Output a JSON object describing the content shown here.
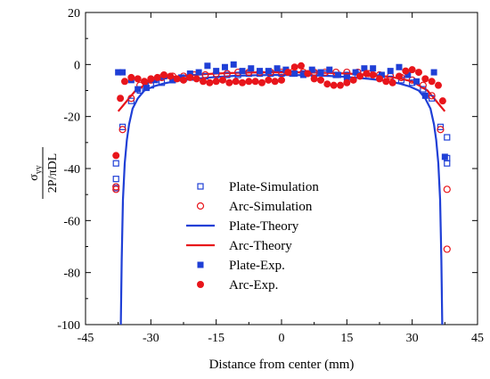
{
  "chart_data": {
    "type": "scatter",
    "title": "",
    "xlabel": "Distance from center (mm)",
    "ylabel": {
      "numerator": "σ",
      "numerator_sub": "yy",
      "denominator": "2P/πDL"
    },
    "xlim": [
      -45,
      45
    ],
    "ylim": [
      -100,
      20
    ],
    "xticks": [
      -45,
      -30,
      -15,
      0,
      15,
      30,
      45
    ],
    "yticks": [
      20,
      0,
      -20,
      -40,
      -60,
      -80,
      -100
    ],
    "grid": false,
    "legend_position": "center-left",
    "colors": {
      "plate": "#1f3fd6",
      "arc": "#e8151b"
    },
    "legend": [
      {
        "name": "Plate-Simulation",
        "marker": "square-open",
        "color": "#1f3fd6"
      },
      {
        "name": "Arc-Simulation",
        "marker": "circle-open",
        "color": "#e8151b"
      },
      {
        "name": "Plate-Theory",
        "marker": "line",
        "color": "#1f3fd6"
      },
      {
        "name": "Arc-Theory",
        "marker": "line",
        "color": "#e8151b"
      },
      {
        "name": "Plate-Exp.",
        "marker": "square-filled",
        "color": "#1f3fd6"
      },
      {
        "name": "Arc-Exp.",
        "marker": "circle-filled",
        "color": "#e8151b"
      }
    ],
    "series": [
      {
        "name": "Plate-Simulation",
        "style": "square-open",
        "color": "#1f3fd6",
        "x": [
          -38,
          -38,
          -38,
          -36.5,
          -34.5,
          -32.5,
          -30,
          -27.5,
          -25,
          -22.5,
          -20,
          -17.5,
          -15,
          -12.5,
          -10,
          -7.5,
          -5,
          -2.5,
          0,
          2.5,
          5,
          7.5,
          10,
          12.5,
          15,
          17.5,
          20,
          22.5,
          25,
          27.5,
          30,
          32.5,
          34.5,
          36.5,
          38,
          38,
          38
        ],
        "y": [
          -38,
          -44,
          -47.5,
          -24,
          -14,
          -10,
          -8,
          -7,
          -6,
          -5.5,
          -5,
          -4.5,
          -4,
          -4,
          -4,
          -3.5,
          -3.5,
          -3.5,
          -3.5,
          -3.5,
          -3.5,
          -3.5,
          -3.5,
          -4,
          -4,
          -4,
          -4.5,
          -5,
          -5.5,
          -6,
          -7,
          -9.5,
          -13,
          -24,
          -28,
          -38,
          -36
        ]
      },
      {
        "name": "Arc-Simulation",
        "style": "circle-open",
        "color": "#e8151b",
        "x": [
          -38,
          -38,
          -36.5,
          -34.5,
          -32.5,
          -30,
          -27.5,
          -25,
          -22.5,
          -20,
          -17.5,
          -15,
          -12.5,
          -10,
          -7.5,
          -5,
          -2.5,
          0,
          2.5,
          5,
          7.5,
          10,
          12.5,
          15,
          17.5,
          20,
          22.5,
          25,
          27.5,
          30,
          32.5,
          34.5,
          36.5,
          38,
          38
        ],
        "y": [
          -47,
          -48,
          -25,
          -13,
          -8,
          -6,
          -5,
          -4.5,
          -4.5,
          -4,
          -4,
          -3.5,
          -3.5,
          -3,
          -3,
          -3,
          -3,
          -3,
          -3,
          -3,
          -3,
          -3,
          -3,
          -3,
          -3,
          -3.5,
          -4,
          -4.5,
          -5,
          -6,
          -8,
          -12,
          -25,
          -48,
          -71
        ]
      },
      {
        "name": "Plate-Theory",
        "style": "line",
        "color": "#1f3fd6",
        "x": [
          -36.9,
          -36.7,
          -36.4,
          -36,
          -35.5,
          -35,
          -34.2,
          -33,
          -31.5,
          -29.5,
          -27,
          -24,
          -20,
          -15,
          -10,
          -5,
          0,
          5,
          10,
          15,
          20,
          24,
          27,
          29.5,
          31.5,
          33,
          34.2,
          35,
          35.5,
          36,
          36.4,
          36.7,
          36.9
        ],
        "y": [
          -100,
          -75,
          -52,
          -38,
          -29,
          -23,
          -17,
          -13,
          -10,
          -8.5,
          -7.3,
          -6.3,
          -5.5,
          -4.8,
          -4.3,
          -4.1,
          -4,
          -4.1,
          -4.3,
          -4.8,
          -5.5,
          -6.3,
          -7.3,
          -8.5,
          -10,
          -13,
          -17,
          -23,
          -29,
          -38,
          -52,
          -75,
          -100
        ]
      },
      {
        "name": "Arc-Theory",
        "style": "line",
        "color": "#e8151b",
        "x": [
          -37.5,
          -36.5,
          -35.5,
          -34.5,
          -33.5,
          -32,
          -30,
          -27.5,
          -25,
          -22.5,
          -20,
          -17.5,
          -15,
          -12.5,
          -10,
          -7.5,
          -5,
          -2.5,
          0,
          2.5,
          5,
          7.5,
          10,
          12.5,
          15,
          17.5,
          20,
          22.5,
          25,
          27.5,
          30,
          32,
          33.5,
          34.5,
          35.5,
          36.5,
          37.5
        ],
        "y": [
          -18,
          -16,
          -14,
          -12,
          -10,
          -8.5,
          -6.5,
          -5.5,
          -4.8,
          -4.3,
          -4,
          -3.7,
          -3.5,
          -3.3,
          -3.2,
          -3.1,
          -3,
          -3,
          -3,
          -3,
          -3,
          -3.1,
          -3.2,
          -3.3,
          -3.5,
          -3.7,
          -4,
          -4.3,
          -4.8,
          -5.5,
          -6.5,
          -8.5,
          -10,
          -12,
          -14,
          -16,
          -18
        ]
      },
      {
        "name": "Plate-Exp.",
        "style": "square-filled",
        "color": "#1f3fd6",
        "x": [
          -37.5,
          -36.5,
          -34.5,
          -33,
          -31,
          -29,
          -27,
          -25,
          -23,
          -21,
          -19,
          -17,
          -15,
          -13,
          -11,
          -9,
          -7,
          -5,
          -3,
          -1,
          1,
          3,
          5,
          7,
          9,
          11,
          13,
          15,
          17,
          19,
          21,
          23,
          25,
          27,
          29,
          31,
          33,
          35,
          37.5
        ],
        "y": [
          -3,
          -3,
          -6,
          -9.5,
          -9,
          -6,
          -4.5,
          -6,
          -5,
          -3.5,
          -3,
          -0.5,
          -2.5,
          -1,
          0,
          -2.5,
          -1.5,
          -2.5,
          -2.5,
          -1.5,
          -2,
          -3.5,
          -4,
          -2,
          -3,
          -2,
          -4,
          -5,
          -3,
          -1.5,
          -1.5,
          -4,
          -2.5,
          -1,
          -4,
          -6.5,
          -12,
          -3,
          -35.5
        ]
      },
      {
        "name": "Arc-Exp.",
        "style": "circle-filled",
        "color": "#e8151b",
        "x": [
          -38,
          -37,
          -36,
          -34.5,
          -33,
          -31.5,
          -30,
          -28.5,
          -27,
          -25.5,
          -24,
          -22.5,
          -21,
          -19.5,
          -18,
          -16.5,
          -15,
          -13.5,
          -12,
          -10.5,
          -9,
          -7.5,
          -6,
          -4.5,
          -3,
          -1.5,
          0,
          1.5,
          3,
          4.5,
          6,
          7.5,
          9,
          10.5,
          12,
          13.5,
          15,
          16.5,
          18,
          19.5,
          21,
          22.5,
          24,
          25.5,
          27,
          28.5,
          30,
          31.5,
          33,
          34.5,
          36,
          37
        ],
        "y": [
          -35,
          -13,
          -6.5,
          -5,
          -5.5,
          -6.5,
          -5.5,
          -5,
          -4,
          -4.5,
          -5.5,
          -6,
          -5,
          -5.5,
          -6.5,
          -7,
          -6.5,
          -6,
          -7,
          -6.5,
          -7,
          -6.5,
          -6.5,
          -7,
          -6,
          -6.5,
          -6,
          -3,
          -1,
          -0.5,
          -3.5,
          -5.5,
          -6,
          -7.5,
          -8,
          -8,
          -7,
          -6,
          -4.5,
          -3.5,
          -4,
          -5.5,
          -6.5,
          -7,
          -4.5,
          -2.5,
          -2,
          -3,
          -5.5,
          -6.5,
          -8,
          -14
        ]
      }
    ]
  }
}
